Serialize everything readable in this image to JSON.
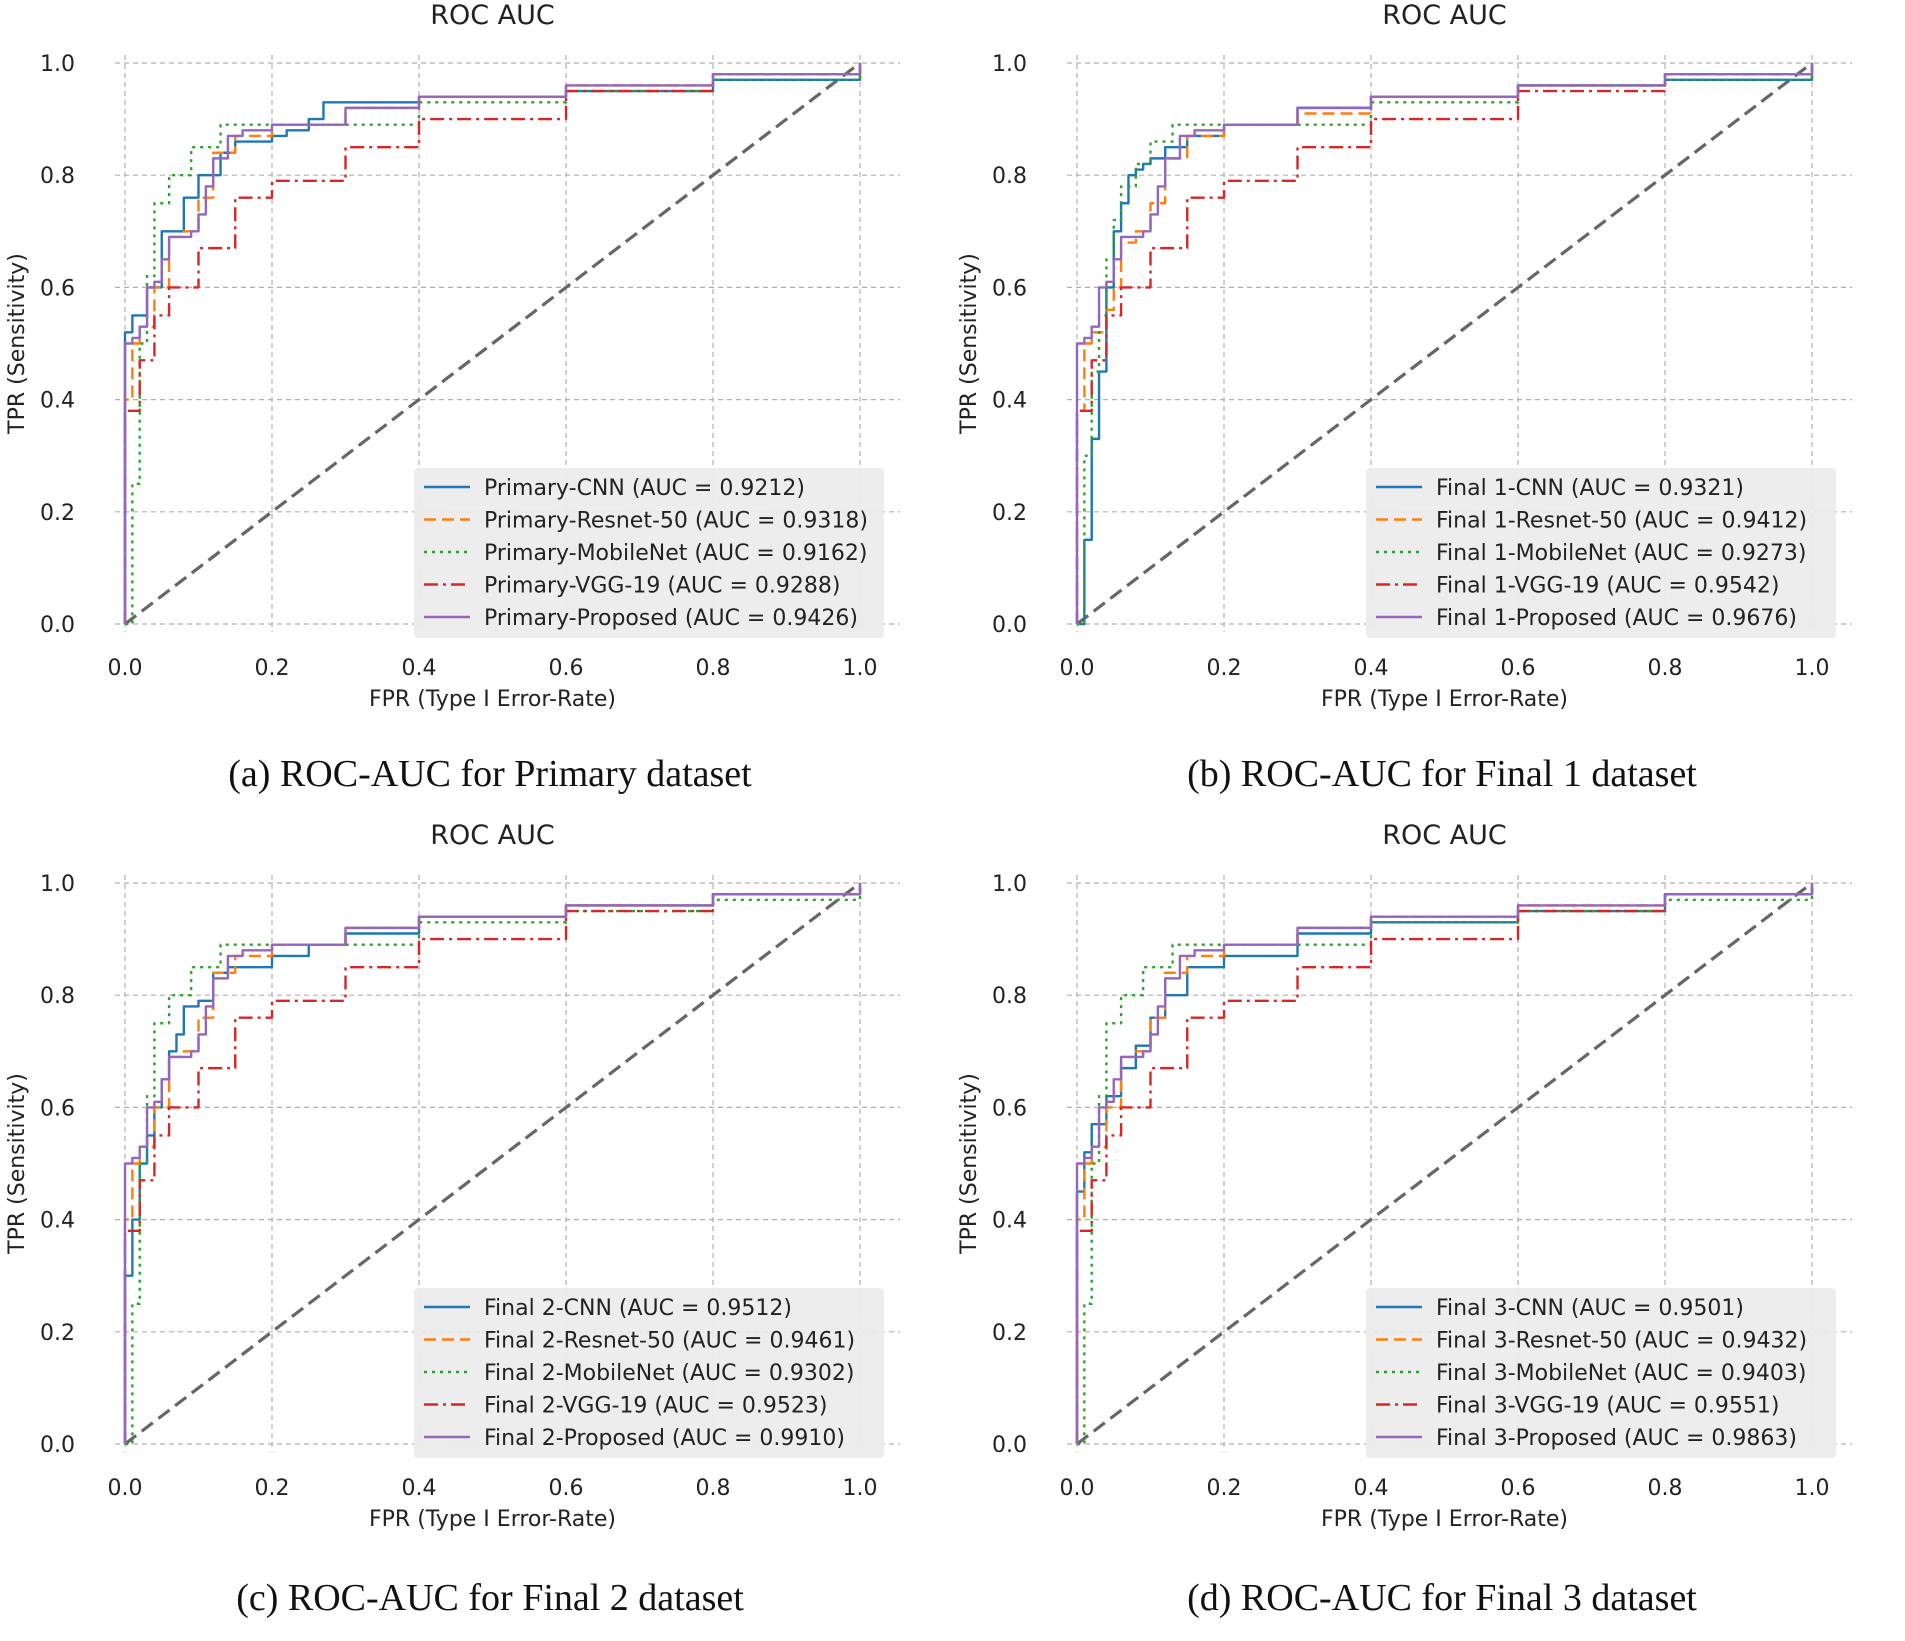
{
  "style": {
    "series_colors": [
      "#1f77b4",
      "#ff7f0e",
      "#2ca02c",
      "#d62728",
      "#9467bd"
    ],
    "series_dash": [
      "",
      "12,6",
      "3,5",
      "14,5,3,5",
      ""
    ],
    "diagonal_color": "#666666",
    "grid_color": "#b0b0b0",
    "legend_bg": "#ebebeb"
  },
  "panels": [
    {
      "caption": "(a) ROC-AUC for Primary dataset",
      "chart_data": {
        "type": "line",
        "title": "ROC AUC",
        "xlabel": "FPR (Type I Error-Rate)",
        "ylabel": "TPR (Sensitivity)",
        "xlim": [
          0,
          1
        ],
        "ylim": [
          0,
          1
        ],
        "xticks": [
          "0.0",
          "0.2",
          "0.4",
          "0.6",
          "0.8",
          "1.0"
        ],
        "yticks": [
          "0.0",
          "0.2",
          "0.4",
          "0.6",
          "0.8",
          "1.0"
        ],
        "grid": true,
        "legend": "lower-right",
        "diagonal": [
          [
            0,
            0
          ],
          [
            1,
            1
          ]
        ],
        "series": [
          {
            "name": "Primary-CNN (AUC = 0.9212)",
            "x": [
              0,
              0,
              0.01,
              0.03,
              0.05,
              0.08,
              0.1,
              0.13,
              0.15,
              0.2,
              0.22,
              0.25,
              0.27,
              0.4,
              0.6,
              0.8,
              1
            ],
            "y": [
              0,
              0.52,
              0.55,
              0.6,
              0.7,
              0.76,
              0.8,
              0.84,
              0.86,
              0.87,
              0.88,
              0.9,
              0.93,
              0.94,
              0.95,
              0.97,
              1
            ]
          },
          {
            "name": "Primary-Resnet-50 (AUC = 0.9318)",
            "x": [
              0,
              0,
              0.01,
              0.02,
              0.04,
              0.06,
              0.08,
              0.1,
              0.12,
              0.15,
              0.2,
              0.3,
              0.4,
              0.6,
              0.8,
              1
            ],
            "y": [
              0,
              0.4,
              0.5,
              0.53,
              0.6,
              0.69,
              0.7,
              0.76,
              0.84,
              0.87,
              0.89,
              0.92,
              0.94,
              0.96,
              0.98,
              1
            ]
          },
          {
            "name": "Primary-MobileNet (AUC = 0.9162)",
            "x": [
              0,
              0.01,
              0.02,
              0.03,
              0.04,
              0.06,
              0.09,
              0.13,
              0.2,
              0.4,
              0.6,
              0.8,
              1
            ],
            "y": [
              0,
              0.25,
              0.5,
              0.62,
              0.75,
              0.8,
              0.85,
              0.89,
              0.89,
              0.93,
              0.95,
              0.97,
              1
            ]
          },
          {
            "name": "Primary-VGG-19 (AUC = 0.9288)",
            "x": [
              0,
              0,
              0.02,
              0.04,
              0.06,
              0.1,
              0.15,
              0.2,
              0.3,
              0.4,
              0.6,
              0.8,
              1
            ],
            "y": [
              0,
              0.38,
              0.47,
              0.55,
              0.6,
              0.67,
              0.76,
              0.79,
              0.85,
              0.9,
              0.95,
              0.98,
              1
            ]
          },
          {
            "name": "Primary-Proposed (AUC = 0.9426)",
            "x": [
              0,
              0,
              0.01,
              0.02,
              0.03,
              0.04,
              0.05,
              0.06,
              0.08,
              0.09,
              0.1,
              0.11,
              0.12,
              0.14,
              0.16,
              0.2,
              0.3,
              0.4,
              0.6,
              0.8,
              1
            ],
            "y": [
              0,
              0.5,
              0.51,
              0.53,
              0.6,
              0.61,
              0.65,
              0.69,
              0.69,
              0.7,
              0.73,
              0.78,
              0.83,
              0.87,
              0.88,
              0.89,
              0.92,
              0.94,
              0.96,
              0.98,
              1
            ]
          }
        ]
      }
    },
    {
      "caption": "(b) ROC-AUC for Final 1 dataset",
      "chart_data": {
        "type": "line",
        "title": "ROC AUC",
        "xlabel": "FPR (Type I Error-Rate)",
        "ylabel": "TPR (Sensitivity)",
        "xlim": [
          0,
          1
        ],
        "ylim": [
          0,
          1
        ],
        "xticks": [
          "0.0",
          "0.2",
          "0.4",
          "0.6",
          "0.8",
          "1.0"
        ],
        "yticks": [
          "0.0",
          "0.2",
          "0.4",
          "0.6",
          "0.8",
          "1.0"
        ],
        "grid": true,
        "legend": "lower-right",
        "diagonal": [
          [
            0,
            0
          ],
          [
            1,
            1
          ]
        ],
        "series": [
          {
            "name": "Final 1-CNN (AUC = 0.9321)",
            "x": [
              0,
              0.01,
              0.02,
              0.03,
              0.04,
              0.05,
              0.06,
              0.07,
              0.08,
              0.09,
              0.1,
              0.12,
              0.15,
              0.2,
              0.3,
              0.4,
              0.6,
              0.8,
              1
            ],
            "y": [
              0,
              0.15,
              0.33,
              0.45,
              0.6,
              0.7,
              0.75,
              0.8,
              0.81,
              0.82,
              0.83,
              0.85,
              0.87,
              0.89,
              0.92,
              0.94,
              0.96,
              0.97,
              1
            ]
          },
          {
            "name": "Final 1-Resnet-50 (AUC = 0.9412)",
            "x": [
              0,
              0,
              0.01,
              0.02,
              0.04,
              0.05,
              0.06,
              0.08,
              0.1,
              0.12,
              0.15,
              0.2,
              0.3,
              0.4,
              0.6,
              0.8,
              1
            ],
            "y": [
              0,
              0.38,
              0.5,
              0.52,
              0.56,
              0.6,
              0.68,
              0.7,
              0.75,
              0.83,
              0.87,
              0.89,
              0.91,
              0.94,
              0.96,
              0.98,
              1
            ]
          },
          {
            "name": "Final 1-MobileNet (AUC = 0.9273)",
            "x": [
              0,
              0.01,
              0.02,
              0.03,
              0.04,
              0.05,
              0.06,
              0.08,
              0.1,
              0.13,
              0.2,
              0.4,
              0.6,
              0.8,
              1
            ],
            "y": [
              0,
              0.3,
              0.45,
              0.55,
              0.65,
              0.72,
              0.78,
              0.82,
              0.86,
              0.89,
              0.89,
              0.93,
              0.96,
              0.97,
              1
            ]
          },
          {
            "name": "Final 1-VGG-19 (AUC = 0.9542)",
            "x": [
              0,
              0,
              0.02,
              0.04,
              0.06,
              0.1,
              0.15,
              0.2,
              0.3,
              0.4,
              0.6,
              0.8,
              1
            ],
            "y": [
              0,
              0.38,
              0.47,
              0.55,
              0.6,
              0.67,
              0.76,
              0.79,
              0.85,
              0.9,
              0.95,
              0.98,
              1
            ]
          },
          {
            "name": "Final 1-Proposed (AUC = 0.9676)",
            "x": [
              0,
              0,
              0.01,
              0.02,
              0.03,
              0.04,
              0.05,
              0.06,
              0.08,
              0.09,
              0.1,
              0.11,
              0.12,
              0.14,
              0.16,
              0.2,
              0.3,
              0.4,
              0.6,
              0.8,
              1
            ],
            "y": [
              0,
              0.5,
              0.51,
              0.53,
              0.6,
              0.61,
              0.65,
              0.69,
              0.69,
              0.7,
              0.73,
              0.78,
              0.83,
              0.87,
              0.88,
              0.89,
              0.92,
              0.94,
              0.96,
              0.98,
              1
            ]
          }
        ]
      }
    },
    {
      "caption": "(c) ROC-AUC for Final 2 dataset",
      "chart_data": {
        "type": "line",
        "title": "ROC AUC",
        "xlabel": "FPR (Type I Error-Rate)",
        "ylabel": "TPR (Sensitivity)",
        "xlim": [
          0,
          1
        ],
        "ylim": [
          0,
          1
        ],
        "xticks": [
          "0.0",
          "0.2",
          "0.4",
          "0.6",
          "0.8",
          "1.0"
        ],
        "yticks": [
          "0.0",
          "0.2",
          "0.4",
          "0.6",
          "0.8",
          "1.0"
        ],
        "grid": true,
        "legend": "lower-right",
        "diagonal": [
          [
            0,
            0
          ],
          [
            1,
            1
          ]
        ],
        "series": [
          {
            "name": "Final 2-CNN (AUC = 0.9512)",
            "x": [
              0,
              0,
              0.01,
              0.02,
              0.03,
              0.04,
              0.05,
              0.06,
              0.07,
              0.08,
              0.1,
              0.12,
              0.14,
              0.18,
              0.2,
              0.25,
              0.3,
              0.4,
              0.6,
              0.8,
              1
            ],
            "y": [
              0,
              0.3,
              0.4,
              0.5,
              0.55,
              0.6,
              0.65,
              0.7,
              0.73,
              0.78,
              0.79,
              0.84,
              0.85,
              0.85,
              0.87,
              0.89,
              0.91,
              0.94,
              0.96,
              0.98,
              1
            ]
          },
          {
            "name": "Final 2-Resnet-50 (AUC = 0.9461)",
            "x": [
              0,
              0,
              0.01,
              0.02,
              0.04,
              0.06,
              0.08,
              0.1,
              0.12,
              0.15,
              0.2,
              0.3,
              0.4,
              0.6,
              0.8,
              1
            ],
            "y": [
              0,
              0.4,
              0.5,
              0.53,
              0.6,
              0.69,
              0.7,
              0.76,
              0.84,
              0.87,
              0.89,
              0.92,
              0.94,
              0.96,
              0.98,
              1
            ]
          },
          {
            "name": "Final 2-MobileNet (AUC = 0.9302)",
            "x": [
              0,
              0.01,
              0.02,
              0.03,
              0.04,
              0.06,
              0.09,
              0.13,
              0.2,
              0.4,
              0.6,
              0.8,
              1
            ],
            "y": [
              0,
              0.25,
              0.5,
              0.62,
              0.75,
              0.8,
              0.85,
              0.89,
              0.89,
              0.93,
              0.95,
              0.97,
              1
            ]
          },
          {
            "name": "Final 2-VGG-19 (AUC = 0.9523)",
            "x": [
              0,
              0,
              0.02,
              0.04,
              0.06,
              0.1,
              0.15,
              0.2,
              0.3,
              0.4,
              0.6,
              0.8,
              1
            ],
            "y": [
              0,
              0.38,
              0.47,
              0.55,
              0.6,
              0.67,
              0.76,
              0.79,
              0.85,
              0.9,
              0.95,
              0.98,
              1
            ]
          },
          {
            "name": "Final 2-Proposed (AUC = 0.9910)",
            "x": [
              0,
              0,
              0.01,
              0.02,
              0.03,
              0.04,
              0.05,
              0.06,
              0.08,
              0.09,
              0.1,
              0.11,
              0.12,
              0.14,
              0.16,
              0.2,
              0.3,
              0.4,
              0.6,
              0.8,
              1
            ],
            "y": [
              0,
              0.5,
              0.51,
              0.53,
              0.6,
              0.61,
              0.65,
              0.69,
              0.69,
              0.7,
              0.73,
              0.78,
              0.83,
              0.87,
              0.88,
              0.89,
              0.92,
              0.94,
              0.96,
              0.98,
              1
            ]
          }
        ]
      }
    },
    {
      "caption": "(d) ROC-AUC for Final 3 dataset",
      "chart_data": {
        "type": "line",
        "title": "ROC AUC",
        "xlabel": "FPR (Type I Error-Rate)",
        "ylabel": "TPR (Sensitivity)",
        "xlim": [
          0,
          1
        ],
        "ylim": [
          0,
          1
        ],
        "xticks": [
          "0.0",
          "0.2",
          "0.4",
          "0.6",
          "0.8",
          "1.0"
        ],
        "yticks": [
          "0.0",
          "0.2",
          "0.4",
          "0.6",
          "0.8",
          "1.0"
        ],
        "grid": true,
        "legend": "lower-right",
        "diagonal": [
          [
            0,
            0
          ],
          [
            1,
            1
          ]
        ],
        "series": [
          {
            "name": "Final 3-CNN (AUC = 0.9501)",
            "x": [
              0,
              0,
              0.01,
              0.02,
              0.04,
              0.06,
              0.08,
              0.1,
              0.12,
              0.15,
              0.2,
              0.3,
              0.4,
              0.6,
              0.8,
              1
            ],
            "y": [
              0,
              0.45,
              0.52,
              0.57,
              0.62,
              0.67,
              0.71,
              0.76,
              0.8,
              0.85,
              0.87,
              0.91,
              0.93,
              0.95,
              0.98,
              1
            ]
          },
          {
            "name": "Final 3-Resnet-50 (AUC = 0.9432)",
            "x": [
              0,
              0,
              0.01,
              0.02,
              0.04,
              0.06,
              0.08,
              0.1,
              0.12,
              0.15,
              0.2,
              0.3,
              0.4,
              0.6,
              0.8,
              1
            ],
            "y": [
              0,
              0.4,
              0.5,
              0.53,
              0.6,
              0.69,
              0.7,
              0.76,
              0.84,
              0.87,
              0.89,
              0.92,
              0.94,
              0.96,
              0.98,
              1
            ]
          },
          {
            "name": "Final 3-MobileNet (AUC = 0.9403)",
            "x": [
              0,
              0.01,
              0.02,
              0.03,
              0.04,
              0.06,
              0.09,
              0.13,
              0.2,
              0.4,
              0.6,
              0.8,
              1
            ],
            "y": [
              0,
              0.25,
              0.5,
              0.62,
              0.75,
              0.8,
              0.85,
              0.89,
              0.89,
              0.93,
              0.95,
              0.97,
              1
            ]
          },
          {
            "name": "Final 3-VGG-19 (AUC = 0.9551)",
            "x": [
              0,
              0,
              0.02,
              0.04,
              0.06,
              0.1,
              0.15,
              0.2,
              0.3,
              0.4,
              0.6,
              0.8,
              1
            ],
            "y": [
              0,
              0.38,
              0.47,
              0.55,
              0.6,
              0.67,
              0.76,
              0.79,
              0.85,
              0.9,
              0.95,
              0.98,
              1
            ]
          },
          {
            "name": "Final 3-Proposed (AUC = 0.9863)",
            "x": [
              0,
              0,
              0.01,
              0.02,
              0.03,
              0.04,
              0.05,
              0.06,
              0.08,
              0.09,
              0.1,
              0.11,
              0.12,
              0.14,
              0.16,
              0.2,
              0.3,
              0.4,
              0.6,
              0.8,
              1
            ],
            "y": [
              0,
              0.5,
              0.51,
              0.53,
              0.6,
              0.61,
              0.65,
              0.69,
              0.69,
              0.7,
              0.73,
              0.78,
              0.83,
              0.87,
              0.88,
              0.89,
              0.92,
              0.94,
              0.96,
              0.98,
              1
            ]
          }
        ]
      }
    }
  ]
}
